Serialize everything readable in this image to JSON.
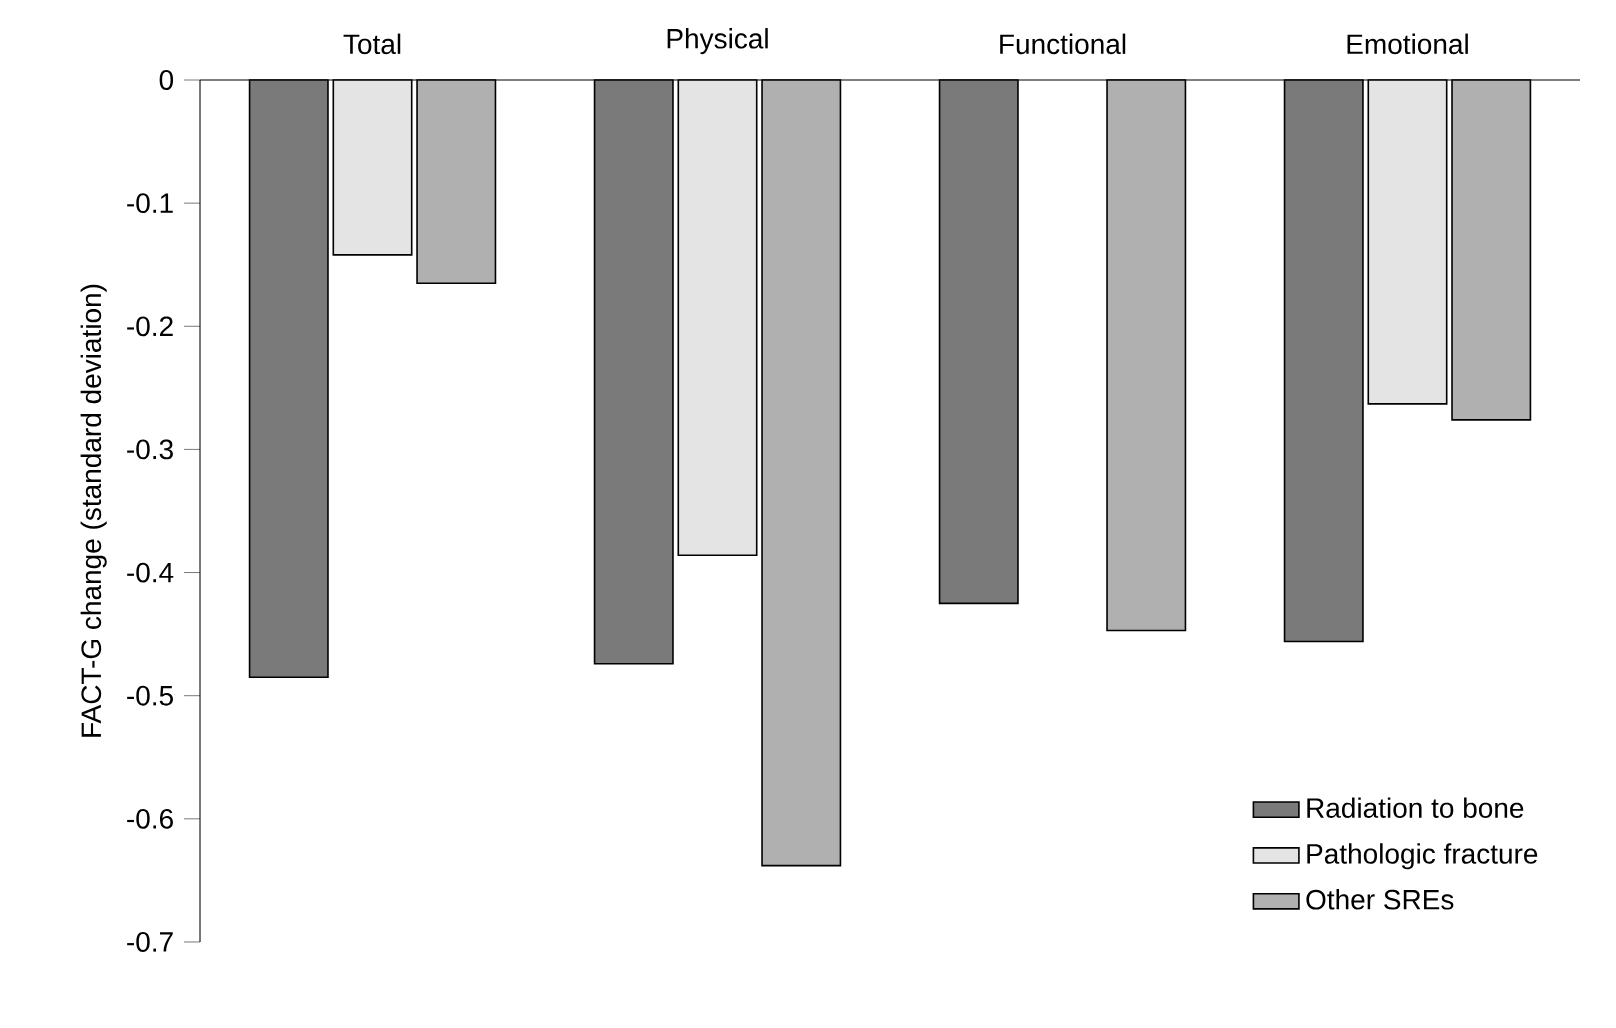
{
  "chart_data": {
    "type": "bar",
    "ylabel": "FACT-G change (standard deviation)",
    "categories": [
      "Total",
      "Physical",
      "Functional",
      "Emotional"
    ],
    "series": [
      {
        "name": "Radiation to bone",
        "color": "#7a7a7a",
        "values": [
          -0.485,
          -0.474,
          -0.425,
          -0.456
        ]
      },
      {
        "name": "Pathologic fracture",
        "color": "#e4e4e4",
        "values": [
          -0.142,
          -0.386,
          null,
          -0.263
        ]
      },
      {
        "name": "Other SREs",
        "color": "#b0b0b0",
        "values": [
          -0.165,
          -0.638,
          -0.447,
          -0.276
        ]
      }
    ],
    "ylim": [
      -0.7,
      0
    ],
    "yticks": [
      0,
      -0.1,
      -0.2,
      -0.3,
      -0.4,
      -0.5,
      -0.6,
      -0.7
    ],
    "grid": false,
    "legend": "bottom right"
  }
}
